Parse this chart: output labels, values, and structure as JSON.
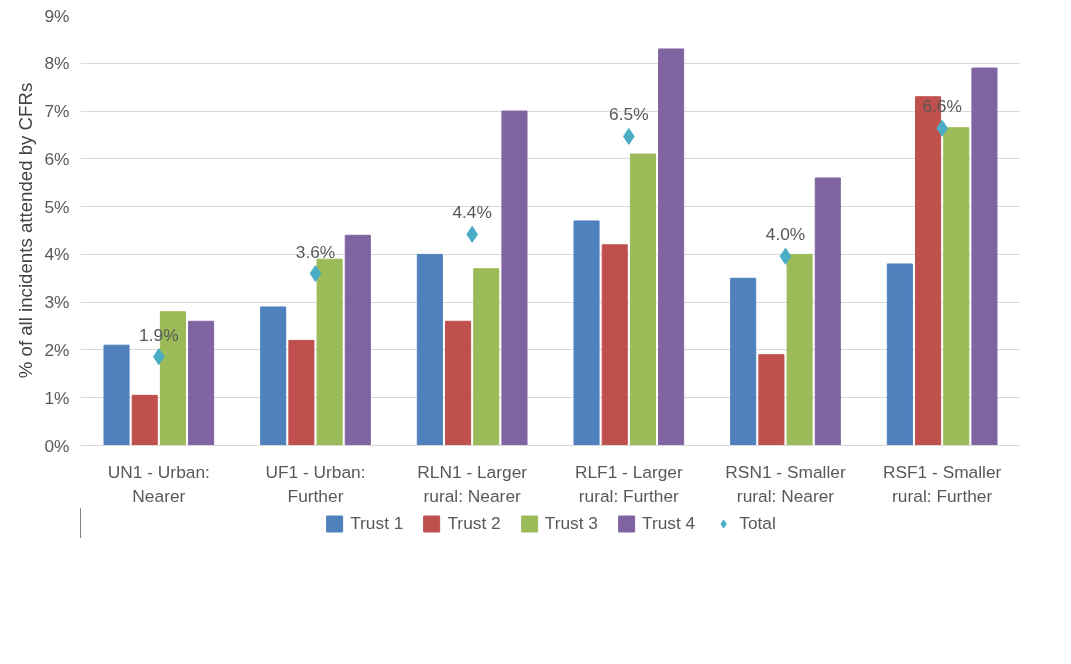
{
  "chart_data": {
    "type": "bar",
    "ylabel": "% of all incidents attended by CFRs",
    "categories": [
      "UN1 - Urban: Nearer",
      "UF1 - Urban: Further",
      "RLN1 - Larger rural: Nearer",
      "RLF1 - Larger rural: Further",
      "RSN1 - Smaller rural: Nearer",
      "RSF1 - Smaller rural: Further"
    ],
    "series": [
      {
        "name": "Trust 1",
        "color": "#4f81bd",
        "values": [
          2.1,
          2.9,
          4.0,
          4.7,
          3.5,
          3.8
        ]
      },
      {
        "name": "Trust 2",
        "color": "#c0504d",
        "values": [
          1.05,
          2.2,
          2.6,
          4.2,
          1.9,
          7.3
        ]
      },
      {
        "name": "Trust 3",
        "color": "#9bbb59",
        "values": [
          2.8,
          3.9,
          3.7,
          6.1,
          4.0,
          6.65
        ]
      },
      {
        "name": "Trust 4",
        "color": "#8064a2",
        "values": [
          2.6,
          4.4,
          7.0,
          8.3,
          5.6,
          7.9
        ]
      },
      {
        "name": "Total",
        "type": "scatter",
        "marker": "diamond",
        "color": "#4bacc6",
        "values": [
          1.86,
          3.6,
          4.42,
          6.47,
          3.96,
          6.64
        ],
        "value_labels": [
          "1.9%",
          "3.6%",
          "4.4%",
          "6.5%",
          "4.0%",
          "6.6%"
        ]
      }
    ],
    "ylim": [
      0,
      9
    ],
    "yticks": [
      {
        "value": 0,
        "label": "0%"
      },
      {
        "value": 1,
        "label": "1%"
      },
      {
        "value": 2,
        "label": "2%"
      },
      {
        "value": 3,
        "label": "3%"
      },
      {
        "value": 4,
        "label": "4%"
      },
      {
        "value": 5,
        "label": "5%"
      },
      {
        "value": 6,
        "label": "6%"
      },
      {
        "value": 7,
        "label": "7%"
      },
      {
        "value": 8,
        "label": "8%"
      },
      {
        "value": 9,
        "label": "9%"
      }
    ],
    "grid": "y",
    "legend": "bottom"
  }
}
